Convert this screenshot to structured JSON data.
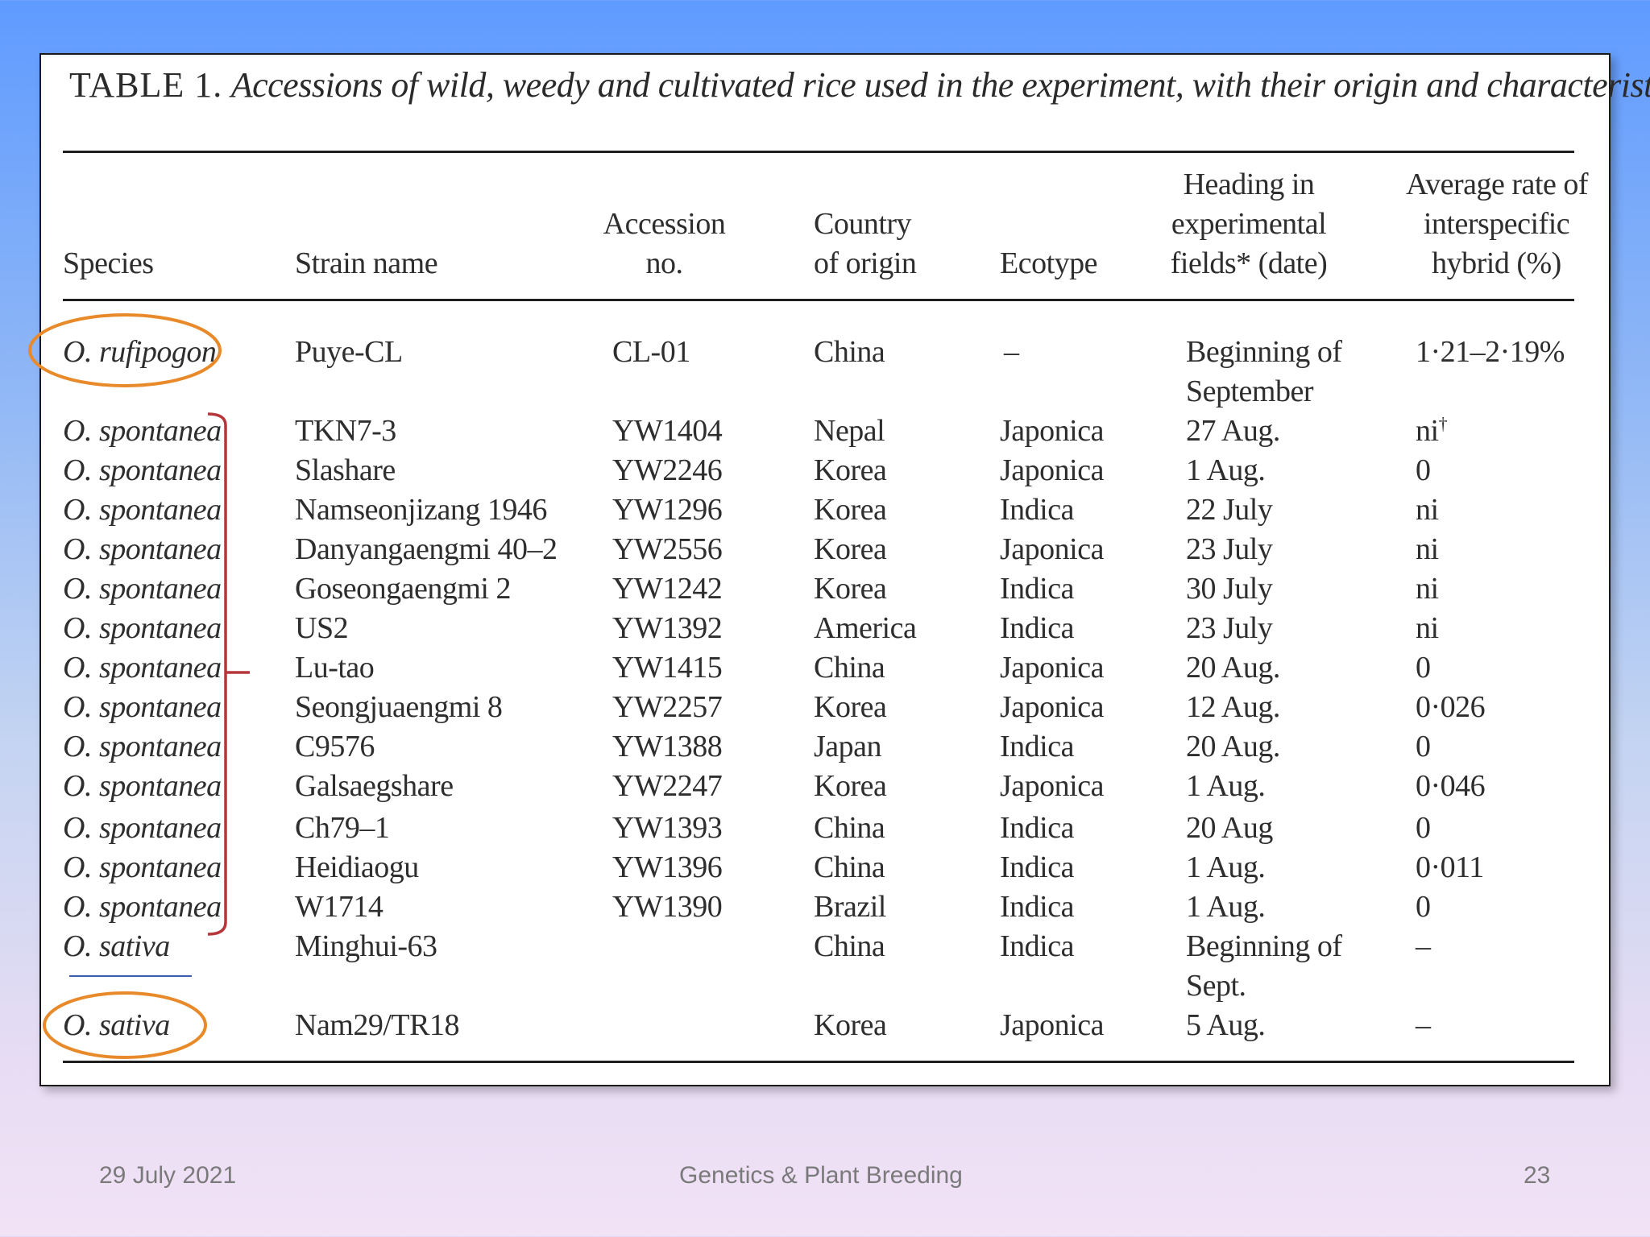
{
  "table": {
    "caption_label": "TABLE 1.",
    "caption_text": "Accessions of wild, weedy and cultivated rice used in the experiment, with their origin and characteristics",
    "headers": {
      "species": [
        "Species"
      ],
      "strain": [
        "Strain name"
      ],
      "accession": [
        "Accession",
        "no."
      ],
      "country": [
        "Country",
        "of origin"
      ],
      "ecotype": [
        "Ecotype"
      ],
      "heading": [
        "Heading in",
        "experimental",
        "fields* (date)"
      ],
      "rate": [
        "Average rate of",
        "interspecific",
        "hybrid (%)"
      ]
    },
    "rows": [
      {
        "species": "O. rufipogon",
        "strain": "Puye-CL",
        "accession": "CL-01",
        "country": "China",
        "ecotype": "–",
        "heading": [
          "Beginning of",
          "September"
        ],
        "rate": "1·21–2·19%"
      },
      {
        "species": "O. spontanea",
        "strain": "TKN7-3",
        "accession": "YW1404",
        "country": "Nepal",
        "ecotype": "Japonica",
        "heading": [
          "27 Aug."
        ],
        "rate": "ni",
        "rate_mark": "†"
      },
      {
        "species": "O. spontanea",
        "strain": "Slashare",
        "accession": "YW2246",
        "country": "Korea",
        "ecotype": "Japonica",
        "heading": [
          "1 Aug."
        ],
        "rate": "0"
      },
      {
        "species": "O. spontanea",
        "strain": "Namseonjizang 1946",
        "accession": "YW1296",
        "country": "Korea",
        "ecotype": "Indica",
        "heading": [
          "22 July"
        ],
        "rate": "ni"
      },
      {
        "species": "O. spontanea",
        "strain": "Danyangaengmi 40–2",
        "accession": "YW2556",
        "country": "Korea",
        "ecotype": "Japonica",
        "heading": [
          "23 July"
        ],
        "rate": "ni"
      },
      {
        "species": "O. spontanea",
        "strain": "Goseongaengmi 2",
        "accession": "YW1242",
        "country": "Korea",
        "ecotype": "Indica",
        "heading": [
          "30 July"
        ],
        "rate": "ni"
      },
      {
        "species": "O. spontanea",
        "strain": "US2",
        "accession": "YW1392",
        "country": "America",
        "ecotype": "Indica",
        "heading": [
          "23 July"
        ],
        "rate": "ni"
      },
      {
        "species": "O. spontanea",
        "strain": "Lu-tao",
        "accession": "YW1415",
        "country": "China",
        "ecotype": "Japonica",
        "heading": [
          "20 Aug."
        ],
        "rate": "0"
      },
      {
        "species": "O. spontanea",
        "strain": "Seongjuaengmi 8",
        "accession": "YW2257",
        "country": "Korea",
        "ecotype": "Japonica",
        "heading": [
          "12 Aug."
        ],
        "rate": "0·026"
      },
      {
        "species": "O. spontanea",
        "strain": "C9576",
        "accession": "YW1388",
        "country": "Japan",
        "ecotype": "Indica",
        "heading": [
          "20 Aug."
        ],
        "rate": "0"
      },
      {
        "species": "O. spontanea",
        "strain": "Galsaegshare",
        "accession": "YW2247",
        "country": "Korea",
        "ecotype": "Japonica",
        "heading": [
          "1 Aug."
        ],
        "rate": "0·046"
      },
      {
        "species": "O. spontanea",
        "strain": "Ch79–1",
        "accession": "YW1393",
        "country": "China",
        "ecotype": "Indica",
        "heading": [
          "20 Aug"
        ],
        "rate": "0"
      },
      {
        "species": "O. spontanea",
        "strain": "Heidiaogu",
        "accession": "YW1396",
        "country": "China",
        "ecotype": "Indica",
        "heading": [
          "1 Aug."
        ],
        "rate": "0·011"
      },
      {
        "species": "O. spontanea",
        "strain": "W1714",
        "accession": "YW1390",
        "country": "Brazil",
        "ecotype": "Indica",
        "heading": [
          "1 Aug."
        ],
        "rate": "0"
      },
      {
        "species": "O. sativa",
        "strain": "Minghui-63",
        "accession": "",
        "country": "China",
        "ecotype": "Indica",
        "heading": [
          "Beginning of",
          "Sept."
        ],
        "rate": "–"
      },
      {
        "species": "O. sativa",
        "strain": "Nam29/TR18",
        "accession": "",
        "country": "Korea",
        "ecotype": "Japonica",
        "heading": [
          "5 Aug."
        ],
        "rate": "–"
      }
    ]
  },
  "annotations": {
    "circle_color": "#e88a2a",
    "bracket_color": "#b5373a",
    "underline_color": "#3a5fb0"
  },
  "footer": {
    "date": "29 July 2021",
    "title": "Genetics & Plant Breeding",
    "page": "23"
  }
}
